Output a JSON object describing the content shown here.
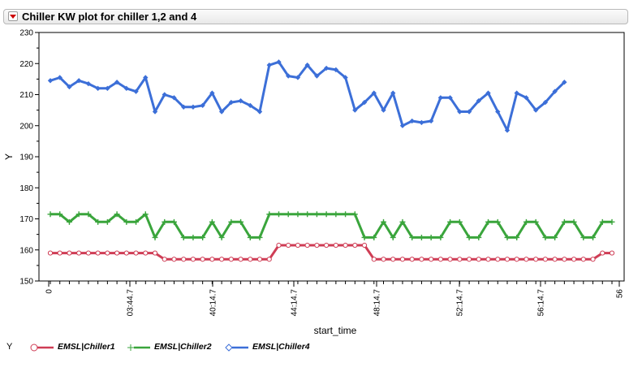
{
  "panel": {
    "title": "Chiller KW plot for chiller 1,2 and 4"
  },
  "chart_data": {
    "type": "line",
    "title": "",
    "xlabel": "start_time",
    "ylabel": "Y",
    "ylim": [
      150,
      230
    ],
    "y_ticks": [
      150,
      160,
      170,
      180,
      190,
      200,
      210,
      220,
      230
    ],
    "x_ticks": [
      "0",
      "03:44.7",
      "40:14.7",
      "44:14.7",
      "48:14.7",
      "52:14.7",
      "56:14.7",
      "56"
    ],
    "grid": false,
    "legend_position": "bottom",
    "legend_title": "Y",
    "x": [
      1,
      2,
      3,
      4,
      5,
      6,
      7,
      8,
      9,
      10,
      11,
      12,
      13,
      14,
      15,
      16,
      17,
      18,
      19,
      20,
      21,
      22,
      23,
      24,
      25,
      26,
      27,
      28,
      29,
      30,
      31,
      32,
      33,
      34,
      35,
      36,
      37,
      38,
      39,
      40,
      41,
      42,
      43,
      44,
      45,
      46,
      47,
      48,
      49,
      50,
      51,
      52,
      53,
      54,
      55,
      56,
      57,
      58,
      59,
      60
    ],
    "series": [
      {
        "name": "EMSL|Chiller1",
        "color": "#cf3d55",
        "marker": "circle",
        "values": [
          159,
          159,
          159,
          159,
          159,
          159,
          159,
          159,
          159,
          159,
          159,
          159,
          157,
          157,
          157,
          157,
          157,
          157,
          157,
          157,
          157,
          157,
          157,
          157,
          161.5,
          161.5,
          161.5,
          161.5,
          161.5,
          161.5,
          161.5,
          161.5,
          161.5,
          161.5,
          157,
          157,
          157,
          157,
          157,
          157,
          157,
          157,
          157,
          157,
          157,
          157,
          157,
          157,
          157,
          157,
          157,
          157,
          157,
          157,
          157,
          157,
          157,
          157,
          159,
          159
        ]
      },
      {
        "name": "EMSL|Chiller2",
        "color": "#3aa53c",
        "marker": "plus",
        "values": [
          171.5,
          171.5,
          169,
          171.5,
          171.5,
          169,
          169,
          171.5,
          169,
          169,
          171.5,
          164,
          169,
          169,
          164,
          164,
          164,
          169,
          164,
          169,
          169,
          164,
          164,
          171.5,
          171.5,
          171.5,
          171.5,
          171.5,
          171.5,
          171.5,
          171.5,
          171.5,
          171.5,
          164,
          164,
          169,
          164,
          169,
          164,
          164,
          164,
          164,
          169,
          169,
          164,
          164,
          169,
          169,
          164,
          164,
          169,
          169,
          164,
          164,
          169,
          169,
          164,
          164,
          169,
          169
        ]
      },
      {
        "name": "EMSL|Chiller4",
        "color": "#3c6fd8",
        "marker": "diamond",
        "values": [
          214.5,
          215.5,
          212.5,
          214.5,
          213.5,
          212,
          212,
          214,
          212,
          211,
          215.5,
          204.5,
          210,
          209,
          206,
          206,
          206.5,
          210.5,
          204.5,
          207.5,
          208,
          206.5,
          204.5,
          219.5,
          220.5,
          216,
          215.5,
          219.5,
          216,
          218.5,
          218,
          215.5,
          205,
          207.5,
          210.5,
          205,
          210.5,
          200,
          201.5,
          201,
          201.5,
          209,
          209,
          204.5,
          204.5,
          208,
          210.5,
          204.5,
          198.5,
          210.5,
          209,
          205,
          207.5,
          211,
          214,
          null,
          null,
          null,
          null,
          null
        ]
      }
    ]
  }
}
